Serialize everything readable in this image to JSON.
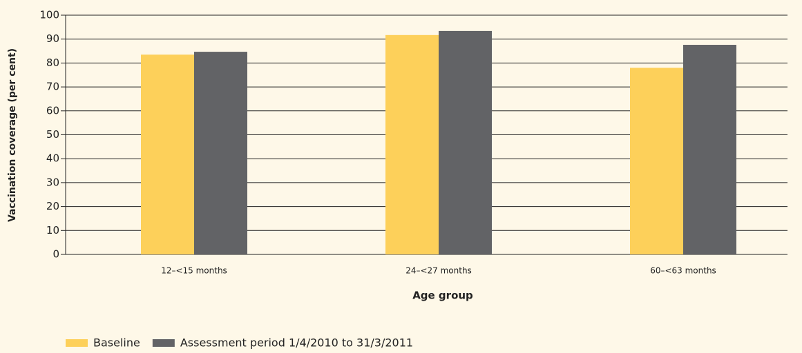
{
  "chart_data": {
    "type": "bar",
    "x_label": "Age group",
    "y_label": "Vaccination coverage (per cent)",
    "categories": [
      "12–<15 months",
      "24–<27 months",
      "60–<63 months"
    ],
    "series": [
      {
        "name": "Baseline",
        "color": "#fdd05a",
        "values": [
          83.5,
          91.7,
          78
        ]
      },
      {
        "name": "Assessment period 1/4/2010 to 31/3/2011",
        "color": "#626366",
        "values": [
          84.7,
          93.4,
          87.6
        ]
      }
    ],
    "ylim": [
      0,
      100
    ],
    "yticks": [
      0,
      10,
      20,
      30,
      40,
      50,
      60,
      70,
      80,
      90,
      100
    ],
    "grid": true,
    "legend": "bottom"
  }
}
